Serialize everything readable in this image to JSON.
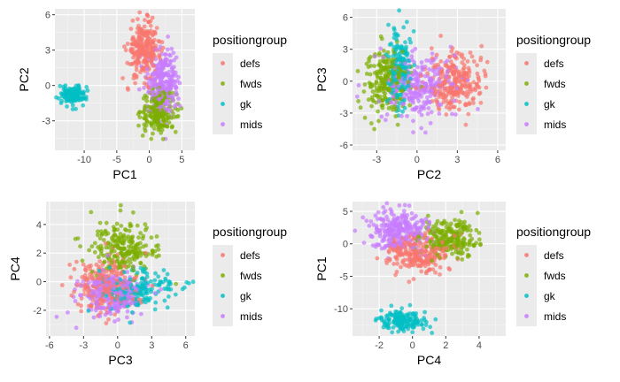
{
  "figure": {
    "background": "#ffffff",
    "panel_background": "#ebebeb",
    "grid_major": "#ffffff",
    "grid_minor": "#f5f5f5",
    "legend_key_background": "#ebebeb"
  },
  "colors": {
    "defs": "#F8766D",
    "fwds": "#7CAE00",
    "gk": "#00BFC4",
    "mids": "#C77CFF"
  },
  "chart_data": [
    {
      "type": "scatter",
      "xlabel": "PC1",
      "ylabel": "PC2",
      "xlim": [
        -14.5,
        7
      ],
      "ylim": [
        -5.5,
        6.5
      ],
      "xticks": [
        -10,
        -5,
        0,
        5
      ],
      "yticks": [
        -3,
        0,
        3,
        6
      ],
      "legend": {
        "title": "positiongroup",
        "placement": "right",
        "entries": [
          "defs",
          "fwds",
          "gk",
          "mids"
        ]
      },
      "series": [
        {
          "name": "defs",
          "color": "#F8766D",
          "clusters": [
            {
              "cx": -0.8,
              "cy": 3.0,
              "sx": 1.4,
              "sy": 1.3,
              "n": 260
            }
          ]
        },
        {
          "name": "fwds",
          "color": "#7CAE00",
          "clusters": [
            {
              "cx": 1.5,
              "cy": -2.2,
              "sx": 1.5,
              "sy": 1.0,
              "n": 200
            }
          ]
        },
        {
          "name": "gk",
          "color": "#00BFC4",
          "clusters": [
            {
              "cx": -11.8,
              "cy": -0.8,
              "sx": 1.1,
              "sy": 0.45,
              "n": 150
            }
          ]
        },
        {
          "name": "mids",
          "color": "#C77CFF",
          "clusters": [
            {
              "cx": 2.2,
              "cy": 0.3,
              "sx": 1.3,
              "sy": 1.6,
              "n": 260
            }
          ]
        }
      ]
    },
    {
      "type": "scatter",
      "xlabel": "PC2",
      "ylabel": "PC3",
      "xlim": [
        -4.8,
        6.6
      ],
      "ylim": [
        -6.5,
        6.8
      ],
      "xticks": [
        -3,
        0,
        3,
        6
      ],
      "yticks": [
        -6,
        -3,
        0,
        3,
        6
      ],
      "legend": {
        "title": "positiongroup",
        "placement": "right",
        "entries": [
          "defs",
          "fwds",
          "gk",
          "mids"
        ]
      },
      "series": [
        {
          "name": "defs",
          "color": "#F8766D",
          "clusters": [
            {
              "cx": 2.8,
              "cy": 0.0,
              "sx": 1.1,
              "sy": 1.5,
              "n": 260
            }
          ]
        },
        {
          "name": "fwds",
          "color": "#7CAE00",
          "clusters": [
            {
              "cx": -2.2,
              "cy": 0.0,
              "sx": 0.9,
              "sy": 1.8,
              "n": 220
            }
          ]
        },
        {
          "name": "gk",
          "color": "#00BFC4",
          "clusters": [
            {
              "cx": -1.3,
              "cy": 1.2,
              "sx": 0.45,
              "sy": 2.2,
              "n": 160
            }
          ]
        },
        {
          "name": "mids",
          "color": "#C77CFF",
          "clusters": [
            {
              "cx": 0.2,
              "cy": -0.5,
              "sx": 1.5,
              "sy": 1.7,
              "n": 260
            }
          ]
        }
      ]
    },
    {
      "type": "scatter",
      "xlabel": "PC3",
      "ylabel": "PC4",
      "xlim": [
        -6.3,
        6.8
      ],
      "ylim": [
        -3.8,
        5.6
      ],
      "xticks": [
        -6,
        -3,
        0,
        3,
        6
      ],
      "yticks": [
        -2,
        0,
        2,
        4
      ],
      "legend": {
        "title": "positiongroup",
        "placement": "right",
        "entries": [
          "defs",
          "fwds",
          "gk",
          "mids"
        ]
      },
      "series": [
        {
          "name": "defs",
          "color": "#F8766D",
          "clusters": [
            {
              "cx": -1.0,
              "cy": -0.3,
              "sx": 1.6,
              "sy": 1.1,
              "n": 240
            }
          ]
        },
        {
          "name": "fwds",
          "color": "#7CAE00",
          "clusters": [
            {
              "cx": 0.5,
              "cy": 2.2,
              "sx": 1.6,
              "sy": 1.1,
              "n": 220
            }
          ]
        },
        {
          "name": "gk",
          "color": "#00BFC4",
          "clusters": [
            {
              "cx": 2.0,
              "cy": -0.5,
              "sx": 1.8,
              "sy": 0.8,
              "n": 170
            }
          ]
        },
        {
          "name": "mids",
          "color": "#C77CFF",
          "clusters": [
            {
              "cx": -0.5,
              "cy": -0.9,
              "sx": 1.6,
              "sy": 0.9,
              "n": 260
            }
          ]
        }
      ]
    },
    {
      "type": "scatter",
      "xlabel": "PC4",
      "ylabel": "PC1",
      "xlim": [
        -3.6,
        5.6
      ],
      "ylim": [
        -14.2,
        6.5
      ],
      "xticks": [
        -2,
        0,
        2,
        4
      ],
      "yticks": [
        -10,
        -5,
        0,
        5
      ],
      "legend": {
        "title": "positiongroup",
        "placement": "right",
        "entries": [
          "defs",
          "fwds",
          "gk",
          "mids"
        ]
      },
      "series": [
        {
          "name": "defs",
          "color": "#F8766D",
          "clusters": [
            {
              "cx": 0.3,
              "cy": -1.5,
              "sx": 1.0,
              "sy": 1.8,
              "n": 240
            }
          ]
        },
        {
          "name": "fwds",
          "color": "#7CAE00",
          "clusters": [
            {
              "cx": 2.2,
              "cy": 1.0,
              "sx": 0.9,
              "sy": 1.5,
              "n": 220
            }
          ]
        },
        {
          "name": "gk",
          "color": "#00BFC4",
          "clusters": [
            {
              "cx": -0.6,
              "cy": -11.8,
              "sx": 0.8,
              "sy": 0.9,
              "n": 160
            }
          ]
        },
        {
          "name": "mids",
          "color": "#C77CFF",
          "clusters": [
            {
              "cx": -0.8,
              "cy": 2.2,
              "sx": 1.0,
              "sy": 1.8,
              "n": 260
            }
          ]
        }
      ]
    }
  ]
}
